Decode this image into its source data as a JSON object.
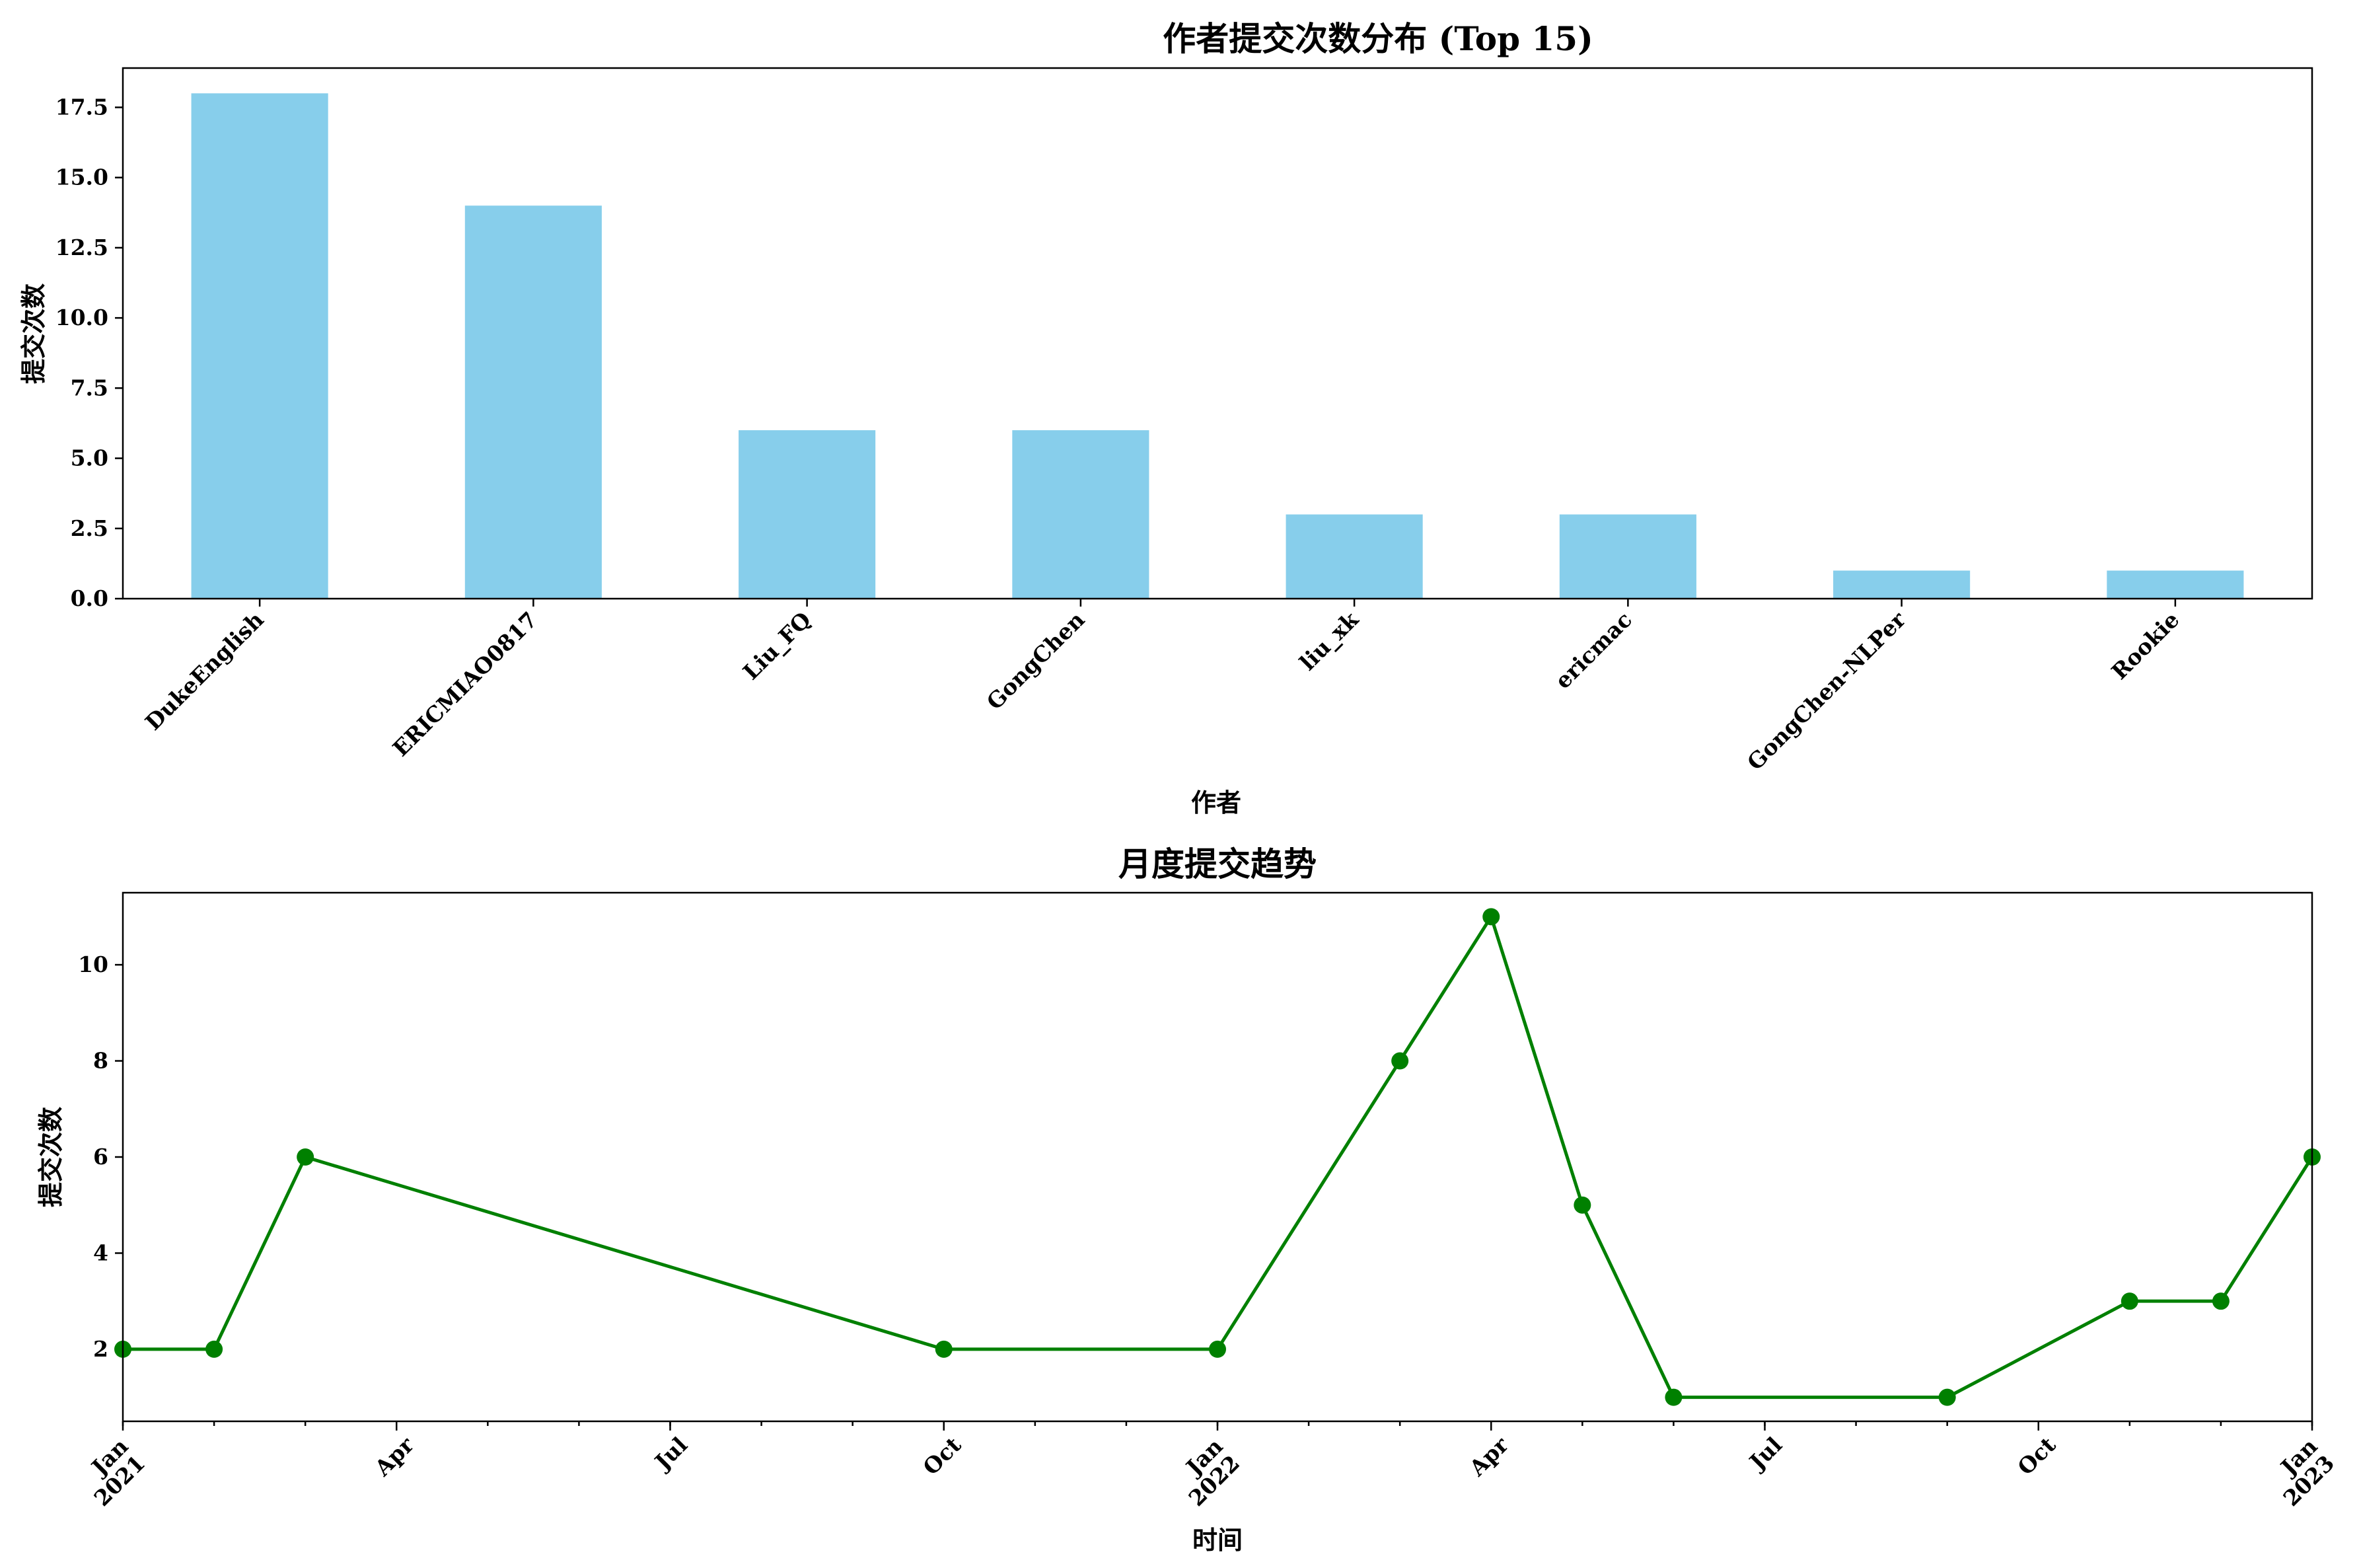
{
  "colors": {
    "bar": "#87CEEB",
    "line": "#008000"
  },
  "chart_data": [
    {
      "type": "bar",
      "title": "作者提交次数分布 (Top 15)",
      "xlabel": "作者",
      "ylabel": "提交次数",
      "categories": [
        "DukeEnglish",
        "ERICMIAO0817",
        "Liu_FQ",
        "GongChen",
        "liu_xk",
        "ericmac",
        "GongChen-NLPer",
        "Rookie"
      ],
      "values": [
        18,
        14,
        6,
        6,
        3,
        3,
        1,
        1
      ],
      "ylim": [
        0,
        18.9
      ],
      "yticks": [
        0.0,
        2.5,
        5.0,
        7.5,
        10.0,
        12.5,
        15.0,
        17.5
      ],
      "ytick_labels": [
        "0.0",
        "2.5",
        "5.0",
        "7.5",
        "10.0",
        "12.5",
        "15.0",
        "17.5"
      ],
      "grid": false,
      "legend": "none"
    },
    {
      "type": "line",
      "title": "月度提交趋势",
      "xlabel": "时间",
      "ylabel": "提交次数",
      "x": [
        "2021-01",
        "2021-02",
        "2021-03",
        "2021-10",
        "2022-01",
        "2022-03",
        "2022-04",
        "2022-05",
        "2022-06",
        "2022-09",
        "2022-11",
        "2022-12",
        "2023-01"
      ],
      "values": [
        2,
        2,
        6,
        2,
        2,
        8,
        11,
        5,
        1,
        1,
        3,
        3,
        6
      ],
      "xlim": [
        "2021-01",
        "2023-01"
      ],
      "ylim": [
        0.5,
        11.5
      ],
      "yticks": [
        2,
        4,
        6,
        8,
        10
      ],
      "ytick_labels": [
        "2",
        "4",
        "6",
        "8",
        "10"
      ],
      "xticks_major": [
        {
          "month": "2021-01",
          "label": "Jan",
          "sublabel": "2021"
        },
        {
          "month": "2021-04",
          "label": "Apr",
          "sublabel": ""
        },
        {
          "month": "2021-07",
          "label": "Jul",
          "sublabel": ""
        },
        {
          "month": "2021-10",
          "label": "Oct",
          "sublabel": ""
        },
        {
          "month": "2022-01",
          "label": "Jan",
          "sublabel": "2022"
        },
        {
          "month": "2022-04",
          "label": "Apr",
          "sublabel": ""
        },
        {
          "month": "2022-07",
          "label": "Jul",
          "sublabel": ""
        },
        {
          "month": "2022-10",
          "label": "Oct",
          "sublabel": ""
        },
        {
          "month": "2023-01",
          "label": "Jan",
          "sublabel": "2023"
        }
      ],
      "grid": false,
      "legend": "none"
    }
  ]
}
